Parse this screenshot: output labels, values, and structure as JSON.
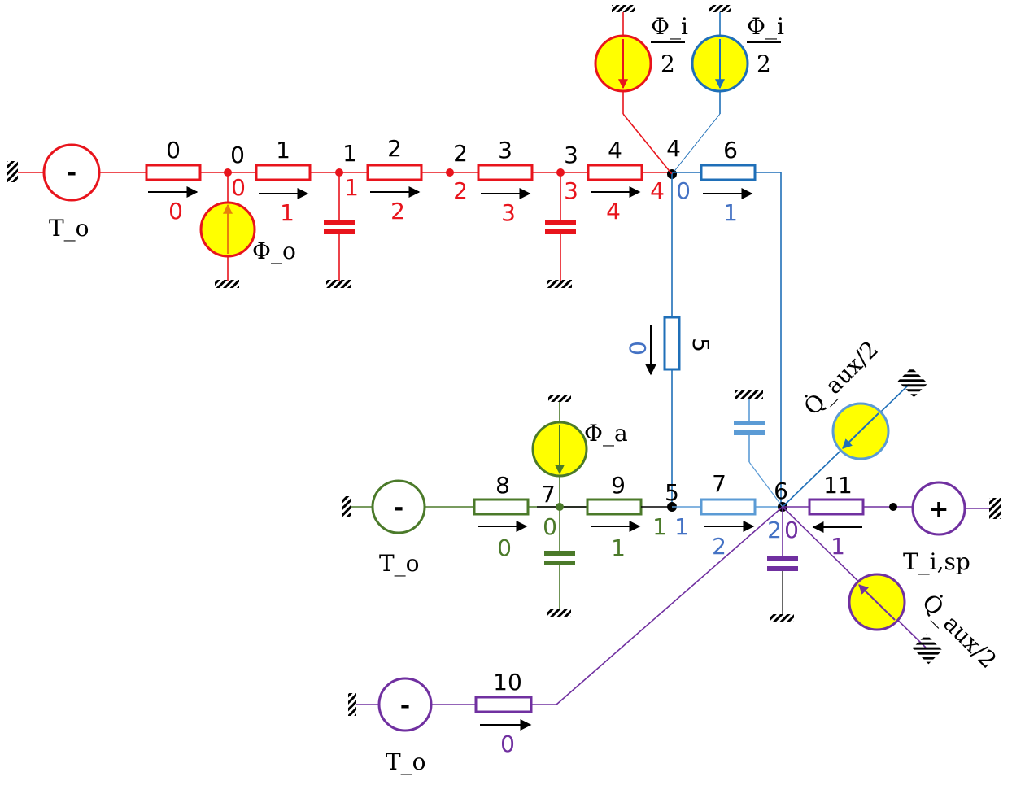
{
  "colors": {
    "red": "#e8141c",
    "blue": "#1f6fb8",
    "lightblue": "#5b9bd5",
    "green": "#4b7a2a",
    "purple": "#7030a0",
    "numblue": "#4472c4",
    "yellow": "#ffff00",
    "black": "#000000"
  },
  "envelope": {
    "source_sign": "-",
    "source_label": "T_o",
    "flow_source_label": "Φ_o",
    "solar_label_top": "Φ_i",
    "solar_label_bottom": "2",
    "node_labels": [
      "0",
      "1",
      "2",
      "3",
      "4"
    ],
    "node_index_labels": [
      "0",
      "1",
      "2",
      "3",
      "4"
    ],
    "branch_labels": [
      "0",
      "1",
      "2",
      "3",
      "4"
    ],
    "flow_labels": [
      "0",
      "1",
      "2",
      "3",
      "4"
    ]
  },
  "glass": {
    "solar_label_top": "Φ_i",
    "solar_label_bottom": "2",
    "node_index_labels": [
      "0"
    ],
    "branch_upper_label": "6",
    "flow_upper_label": "1",
    "branch_vertical_label": "5",
    "flow_vertical_label": "0"
  },
  "wall": {
    "source_sign": "-",
    "source_label": "T_o",
    "flow_source_label": "Φ_a",
    "branch_labels": [
      "8",
      "9"
    ],
    "node_labels": [
      "7"
    ],
    "node_index_labels": [
      "0",
      "1"
    ],
    "flow_labels": [
      "0",
      "1"
    ]
  },
  "room": {
    "node_5_label": "5",
    "node_5_index": "1",
    "branch_7_label": "7",
    "flow_7_label": "2",
    "node_6_label": "6",
    "node_6_index": "2",
    "node_6_index_purple": "0",
    "aux_top_label": "Q̇_aux/2",
    "aux_bottom_label": "Q̇_aux/2"
  },
  "controller": {
    "source_sign": "+",
    "source_label": "T_i,sp",
    "branch_label": "11",
    "flow_label": "1"
  },
  "ventilation": {
    "source_sign": "-",
    "source_label": "T_o",
    "branch_label": "10",
    "flow_label": "0"
  }
}
